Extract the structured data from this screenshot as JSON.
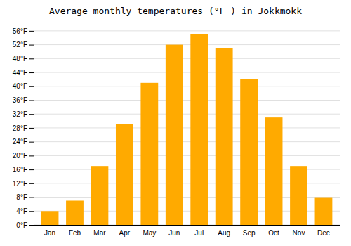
{
  "chart_data": {
    "type": "bar",
    "title": "Average monthly temperatures (°F ) in Jokkmokk",
    "categories": [
      "Jan",
      "Feb",
      "Mar",
      "Apr",
      "May",
      "Jun",
      "Jul",
      "Aug",
      "Sep",
      "Oct",
      "Nov",
      "Dec"
    ],
    "values": [
      4,
      7,
      17,
      29,
      41,
      52,
      55,
      51,
      42,
      31,
      17,
      8
    ],
    "color": "#FFAA00",
    "ylim": [
      0,
      58
    ],
    "yticks": [
      {
        "value": 0,
        "label": "0°F"
      },
      {
        "value": 4,
        "label": "4°F"
      },
      {
        "value": 8,
        "label": "8°F"
      },
      {
        "value": 12,
        "label": "12°F"
      },
      {
        "value": 16,
        "label": "16°F"
      },
      {
        "value": 20,
        "label": "20°F"
      },
      {
        "value": 24,
        "label": "24°F"
      },
      {
        "value": 28,
        "label": "28°F"
      },
      {
        "value": 32,
        "label": "32°F"
      },
      {
        "value": 36,
        "label": "36°F"
      },
      {
        "value": 40,
        "label": "40°F"
      },
      {
        "value": 44,
        "label": "44°F"
      },
      {
        "value": 48,
        "label": "48°F"
      },
      {
        "value": 52,
        "label": "52°F"
      },
      {
        "value": 56,
        "label": "56°F"
      }
    ],
    "grid": true
  }
}
